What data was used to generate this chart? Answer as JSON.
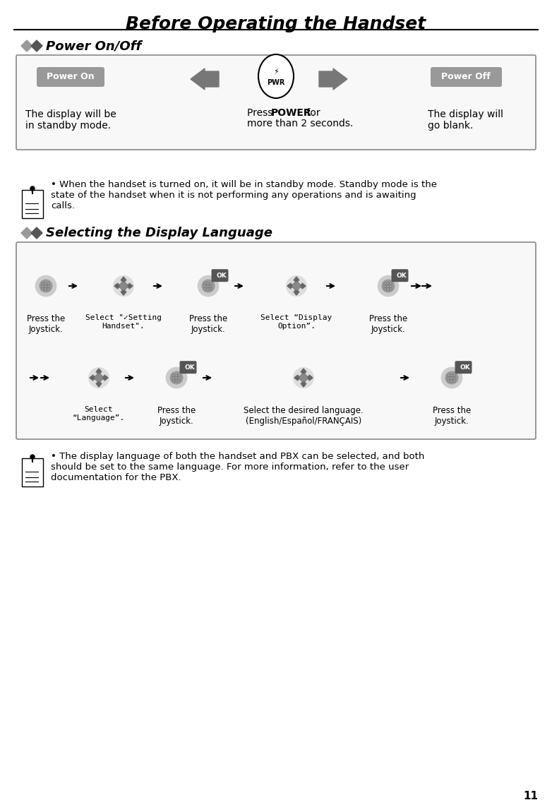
{
  "title": "Before Operating the Handset",
  "page_number": "11",
  "section1_title": "Power On/Off",
  "section2_title": "Selecting the Display Language",
  "power_on_label": "Power On",
  "power_off_label": "Power Off",
  "power_on_text": "The display will be\nin standby mode.",
  "power_center_text_normal": "Press ",
  "power_center_text_bold": "POWER",
  "power_center_text_after": " for\nmore than 2 seconds.",
  "power_off_text": "The display will\ngo blank.",
  "note1_text": "When the handset is turned on, it will be in standby mode. Standby mode is the\nstate of the handset when it is not performing any operations and is awaiting\ncalls.",
  "note2_text": "The display language of both the handset and PBX can be selected, and both\nshould be set to the same language. For more information, refer to the user\ndocumentation for the PBX.",
  "bg_color": "#ffffff",
  "box_border_color": "#888888",
  "box_bg_color": "#f8f8f8",
  "arrow_color": "#666666",
  "label_bg_power_on": "#aaaaaa",
  "label_bg_power_off": "#aaaaaa",
  "label_text_color": "#ffffff",
  "diamond_color1": "#888888",
  "diamond_color2": "#555555",
  "row1_steps": [
    {
      "type": "joystick",
      "label": "Press the\nJoystick."
    },
    {
      "type": "arrow_right"
    },
    {
      "type": "joystick_nav",
      "label": "Select \"✓Setting\nHandset\"."
    },
    {
      "type": "arrow_right"
    },
    {
      "type": "ok_joystick",
      "label": "Press the\nJoystick."
    },
    {
      "type": "arrow_right"
    },
    {
      "type": "joystick_nav",
      "label": "Select “Display\nOption”."
    },
    {
      "type": "arrow_right"
    },
    {
      "type": "ok_joystick",
      "label": "Press the\nJoystick."
    },
    {
      "type": "arrow_double_right"
    }
  ],
  "row2_steps": [
    {
      "type": "arrow_double_right"
    },
    {
      "type": "joystick_nav",
      "label": "Select\n“Language”."
    },
    {
      "type": "arrow_right"
    },
    {
      "type": "ok_joystick",
      "label": "Press the\nJoystick."
    },
    {
      "type": "arrow_right"
    },
    {
      "type": "joystick_plain",
      "label": "Select the desired language.\n(English/Español/FRANÇAIS)"
    },
    {
      "type": "arrow_right"
    },
    {
      "type": "ok_joystick",
      "label": "Press the\nJoystick."
    }
  ]
}
